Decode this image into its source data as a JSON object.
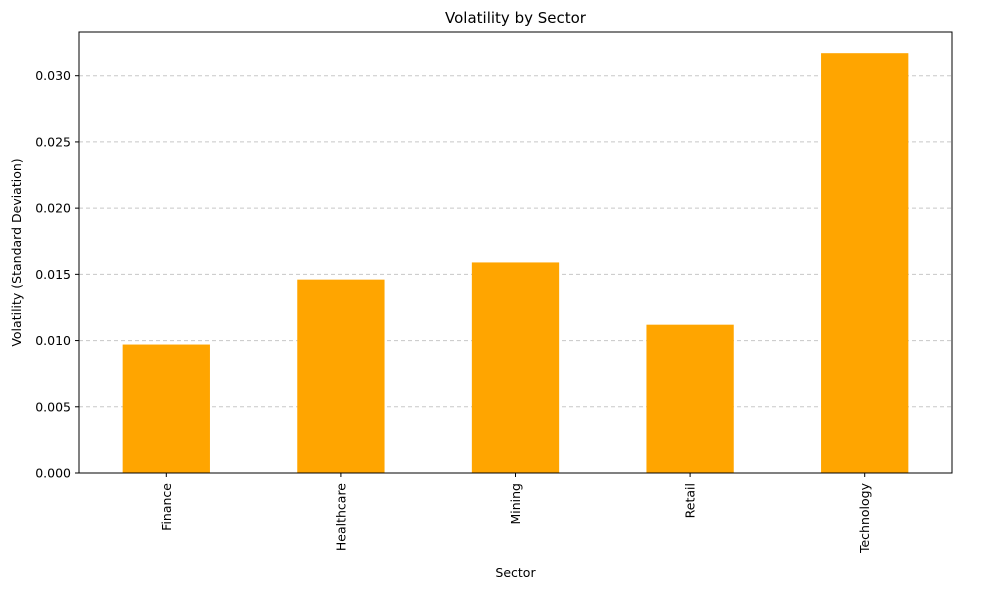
{
  "chart_data": {
    "type": "bar",
    "title": "Volatility by Sector",
    "xlabel": "Sector",
    "ylabel": "Volatility (Standard Deviation)",
    "categories": [
      "Finance",
      "Healthcare",
      "Mining",
      "Retail",
      "Technology"
    ],
    "values": [
      0.0097,
      0.0146,
      0.0159,
      0.0112,
      0.0317
    ],
    "ylim": [
      0,
      0.0333
    ],
    "yticks": [
      "0.000",
      "0.005",
      "0.010",
      "0.015",
      "0.020",
      "0.025",
      "0.030"
    ],
    "grid": "y-dashed",
    "bar_color": "#ffa500",
    "grid_color": "#c8c8c8"
  }
}
